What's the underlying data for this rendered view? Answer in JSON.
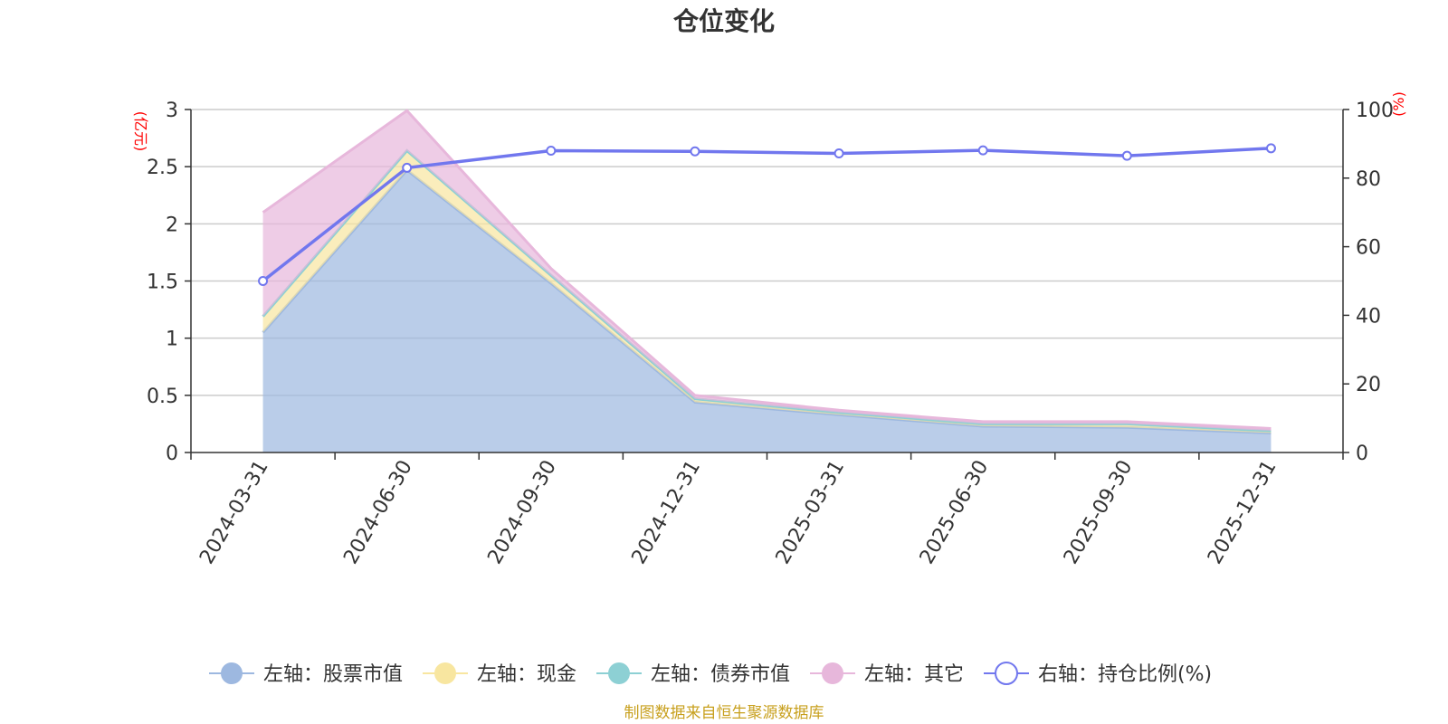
{
  "chart_data": {
    "type": "area",
    "title": "仓位变化",
    "source": "制图数据来自恒生聚源数据库",
    "left_axis": {
      "unit": "(亿元)",
      "ylim": [
        0,
        3
      ],
      "ticks": [
        "0",
        "0.5",
        "1",
        "1.5",
        "2",
        "2.5",
        "3"
      ],
      "tick_values": [
        0,
        0.5,
        1,
        1.5,
        2,
        2.5,
        3
      ]
    },
    "right_axis": {
      "unit": "(%)",
      "ylim": [
        0,
        100
      ],
      "ticks": [
        "0",
        "20",
        "40",
        "60",
        "80",
        "100"
      ],
      "tick_values": [
        0,
        20,
        40,
        60,
        80,
        100
      ]
    },
    "categories": [
      "2024-03-31",
      "2024-06-30",
      "2024-09-30",
      "2024-12-31",
      "2025-03-31",
      "2025-06-30",
      "2025-09-30",
      "2025-12-31"
    ],
    "stacked_series": [
      {
        "name": "左轴：股票市值",
        "axis": "left",
        "color": "#9db8e0",
        "values": [
          1.05,
          2.47,
          1.48,
          0.44,
          0.33,
          0.23,
          0.22,
          0.17
        ]
      },
      {
        "name": "左轴：现金",
        "axis": "left",
        "color": "#f8e6a0",
        "values": [
          0.14,
          0.17,
          0.07,
          0.03,
          0.02,
          0.02,
          0.03,
          0.02
        ]
      },
      {
        "name": "左轴：债券市值",
        "axis": "left",
        "color": "#8dd0d4",
        "values": [
          0,
          0,
          0,
          0,
          0,
          0,
          0,
          0
        ]
      },
      {
        "name": "左轴：其它",
        "axis": "left",
        "color": "#e7b7db",
        "values": [
          0.91,
          0.35,
          0.06,
          0.03,
          0.02,
          0.02,
          0.02,
          0.02
        ]
      }
    ],
    "line_series": {
      "name": "右轴：持仓比例(%)",
      "axis": "right",
      "color": "#7177ee",
      "values": [
        50,
        83,
        88,
        87.8,
        87.2,
        88.1,
        86.5,
        88.7
      ]
    },
    "grid": true,
    "legend_position": "bottom"
  }
}
